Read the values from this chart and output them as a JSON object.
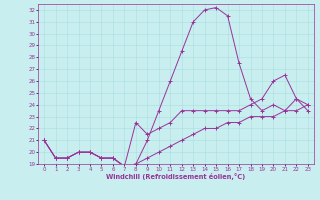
{
  "xlabel": "Windchill (Refroidissement éolien,°C)",
  "bg_color": "#c8eef0",
  "line_color": "#993399",
  "grid_color": "#aadddd",
  "x": [
    0,
    1,
    2,
    3,
    4,
    5,
    6,
    7,
    8,
    9,
    10,
    11,
    12,
    13,
    14,
    15,
    16,
    17,
    18,
    19,
    20,
    21,
    22,
    23
  ],
  "curve1": [
    21,
    19.5,
    19.5,
    20,
    20,
    19.5,
    19.5,
    18.8,
    19.0,
    21.0,
    23.5,
    26.0,
    28.5,
    31.0,
    32.0,
    32.2,
    31.5,
    27.5,
    24.5,
    23.5,
    24.0,
    23.5,
    24.5,
    23.5
  ],
  "curve2": [
    21,
    19.5,
    19.5,
    20,
    20,
    19.5,
    19.5,
    18.8,
    22.5,
    21.5,
    22.0,
    22.5,
    23.5,
    23.5,
    23.5,
    23.5,
    23.5,
    23.5,
    24.0,
    24.5,
    26.0,
    26.5,
    24.5,
    24.0
  ],
  "curve3": [
    21,
    19.5,
    19.5,
    20,
    20,
    19.5,
    19.5,
    18.8,
    19.0,
    19.5,
    20.0,
    20.5,
    21.0,
    21.5,
    22.0,
    22.0,
    22.5,
    22.5,
    23.0,
    23.0,
    23.0,
    23.5,
    23.5,
    24.0
  ],
  "ylim": [
    19,
    32.5
  ],
  "xlim": [
    -0.5,
    23.5
  ],
  "yticks": [
    19,
    20,
    21,
    22,
    23,
    24,
    25,
    26,
    27,
    28,
    29,
    30,
    31,
    32
  ],
  "xticks": [
    0,
    1,
    2,
    3,
    4,
    5,
    6,
    7,
    8,
    9,
    10,
    11,
    12,
    13,
    14,
    15,
    16,
    17,
    18,
    19,
    20,
    21,
    22,
    23
  ]
}
